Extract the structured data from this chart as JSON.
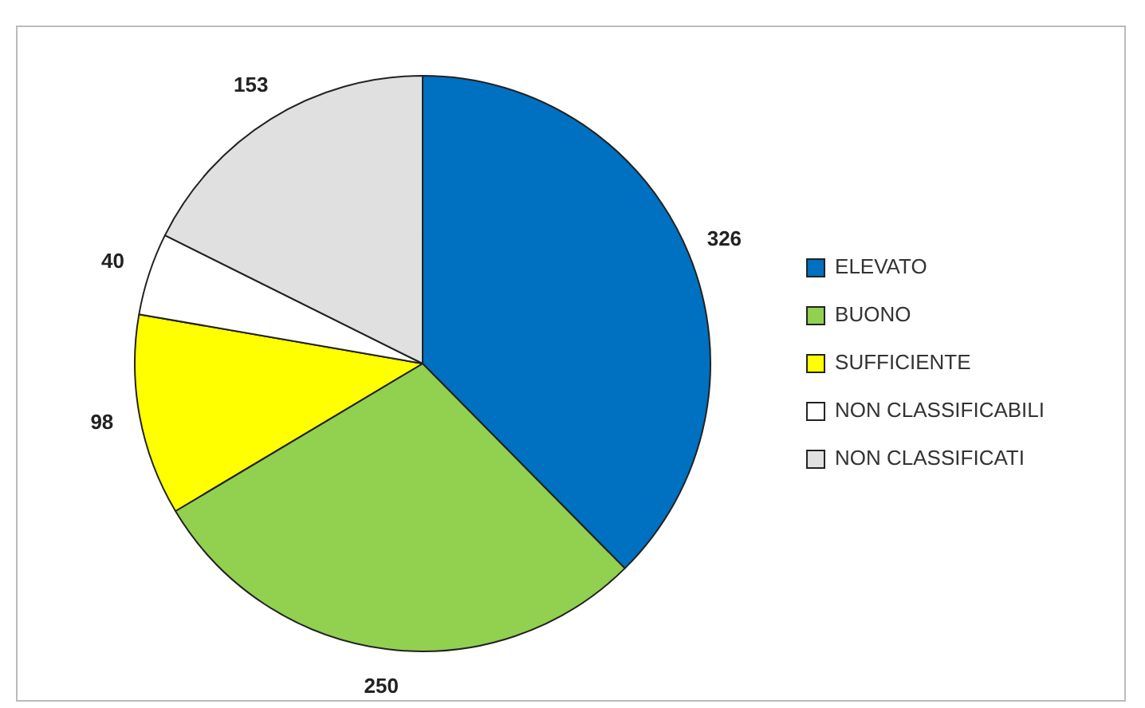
{
  "chart_data": {
    "type": "pie",
    "categories": [
      "ELEVATO",
      "BUONO",
      "SUFFICIENTE",
      "NON CLASSIFICABILI",
      "NON CLASSIFICATI"
    ],
    "values": [
      326,
      250,
      98,
      40,
      153
    ],
    "colors": [
      "#0070c0",
      "#92d050",
      "#ffff00",
      "#ffffff",
      "#e0e0e0"
    ],
    "data_labels": true,
    "legend": "right"
  }
}
